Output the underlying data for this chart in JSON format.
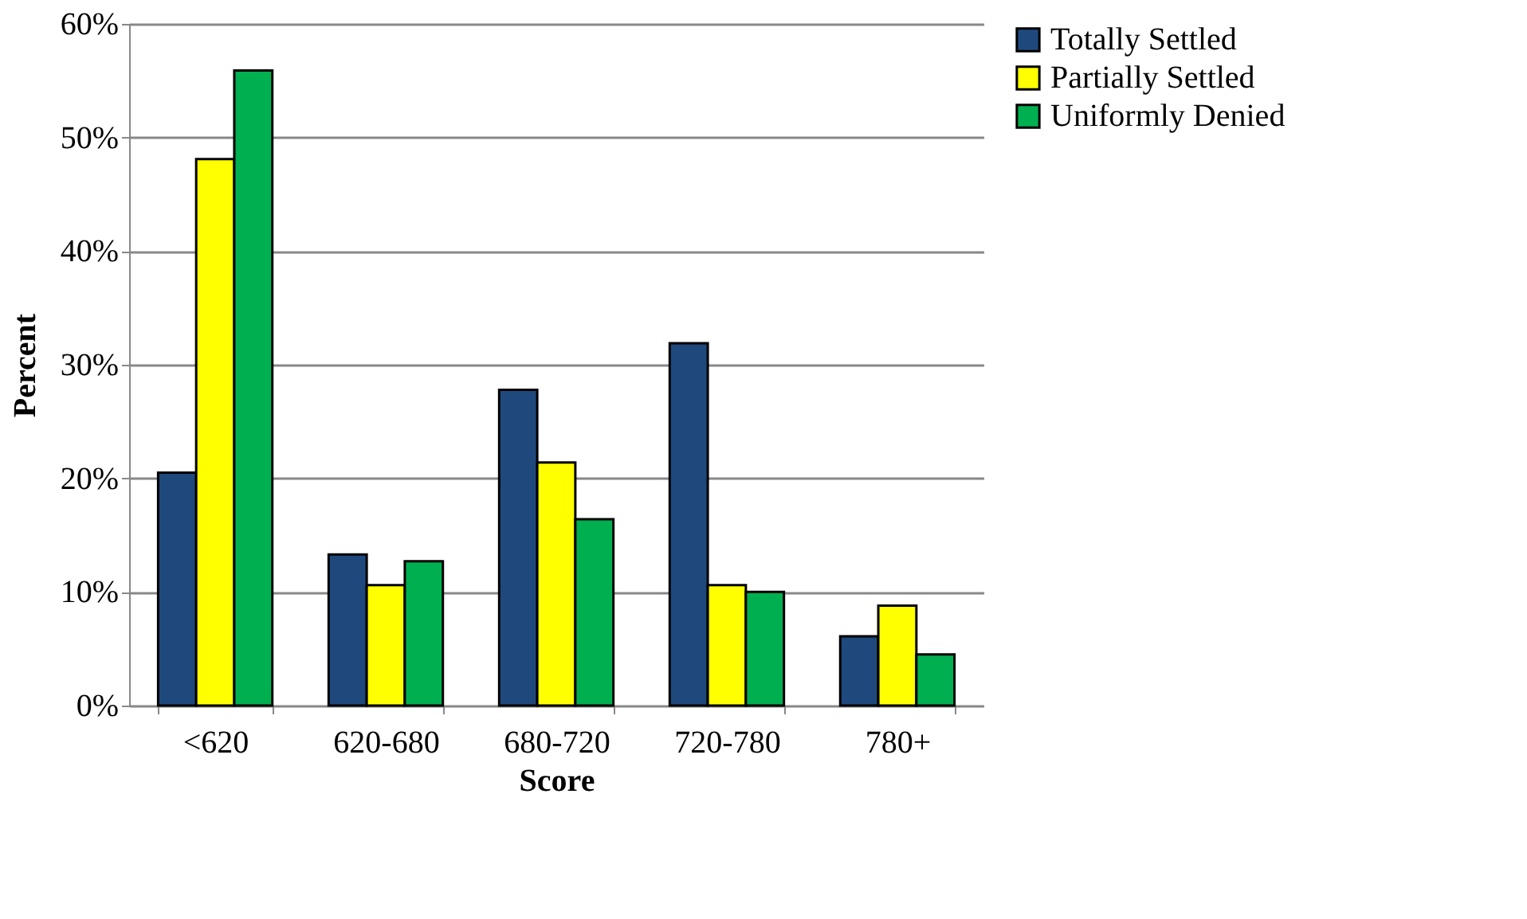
{
  "chart_data": {
    "type": "bar",
    "xlabel": "Score",
    "ylabel": "Percent",
    "categories": [
      "<620",
      "620-680",
      "680-720",
      "720-780",
      "780+"
    ],
    "series": [
      {
        "name": "Totally Settled",
        "color": "#1f497d",
        "values": [
          20.5,
          13.3,
          27.8,
          31.9,
          6.1
        ]
      },
      {
        "name": "Partially Settled",
        "color": "#ffff00",
        "values": [
          48.1,
          10.6,
          21.4,
          10.6,
          8.8
        ]
      },
      {
        "name": "Uniformly Denied",
        "color": "#00b050",
        "values": [
          55.9,
          12.7,
          16.4,
          10.0,
          4.5
        ]
      }
    ],
    "ylim": [
      0,
      60
    ],
    "yticks": [
      {
        "value": 0,
        "label": "0%"
      },
      {
        "value": 10,
        "label": "10%"
      },
      {
        "value": 20,
        "label": "20%"
      },
      {
        "value": 30,
        "label": "30%"
      },
      {
        "value": 40,
        "label": "40%"
      },
      {
        "value": 50,
        "label": "50%"
      },
      {
        "value": 60,
        "label": "60%"
      }
    ],
    "grid": "y",
    "legend": "right"
  }
}
